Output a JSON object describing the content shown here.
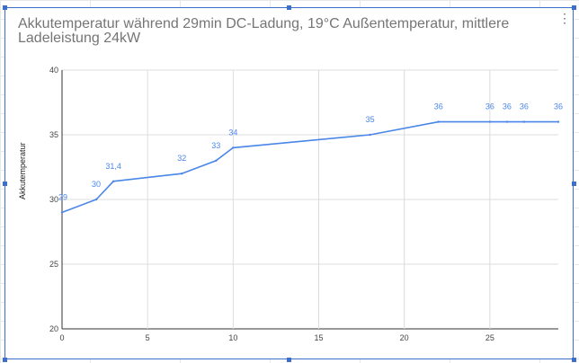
{
  "chart_data": {
    "type": "line",
    "title": "Akkutemperatur während 29min DC-Ladung, 19°C Außentemperatur, mittlere Ladeleistung 24kW",
    "xlabel": "",
    "ylabel": "Akkutemperatur",
    "xlim": [
      0,
      29
    ],
    "ylim": [
      20,
      40
    ],
    "x_ticks": [
      0,
      5,
      10,
      15,
      20,
      25
    ],
    "y_ticks": [
      20,
      25,
      30,
      35,
      40
    ],
    "grid": true,
    "legend": "none",
    "series": [
      {
        "color": "#4a86e8",
        "points": [
          {
            "x": 0,
            "y": 29,
            "label": "29"
          },
          {
            "x": 2,
            "y": 30,
            "label": "30"
          },
          {
            "x": 3,
            "y": 31.4,
            "label": "31,4"
          },
          {
            "x": 7,
            "y": 32,
            "label": "32"
          },
          {
            "x": 9,
            "y": 33,
            "label": "33"
          },
          {
            "x": 10,
            "y": 34,
            "label": "34"
          },
          {
            "x": 18,
            "y": 35,
            "label": "35"
          },
          {
            "x": 22,
            "y": 36,
            "label": "36"
          },
          {
            "x": 25,
            "y": 36,
            "label": "36"
          },
          {
            "x": 26,
            "y": 36,
            "label": "36"
          },
          {
            "x": 27,
            "y": 36,
            "label": "36"
          },
          {
            "x": 29,
            "y": 36,
            "label": "36"
          }
        ]
      }
    ]
  },
  "ui": {
    "menu_icon": "more-vertical-icon",
    "accent": "#3b6fc9"
  }
}
